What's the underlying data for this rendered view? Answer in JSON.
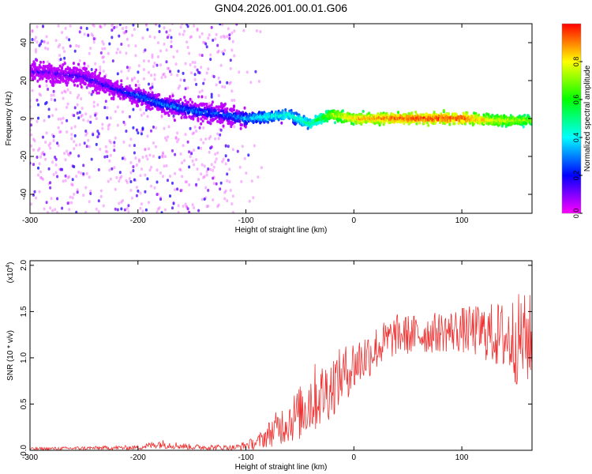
{
  "title": "GN04.2026.001.00.01.G06",
  "chart_data": [
    {
      "type": "heatmap",
      "xlabel": "Height of straight line (km)",
      "ylabel": "Frequency (Hz)",
      "xlim": [
        -300,
        165
      ],
      "ylim": [
        -50,
        50
      ],
      "xticks": [
        -300,
        -200,
        -100,
        0,
        100
      ],
      "xtick_labels": [
        "-300",
        "-200",
        "-100",
        "0",
        "100"
      ],
      "yticks": [
        -40,
        -20,
        0,
        20,
        40
      ],
      "ytick_labels": [
        "-40",
        "-20",
        "0",
        "20",
        "40"
      ],
      "colorbar": {
        "label": "Normalized spectral amplitude",
        "range": [
          0,
          1
        ],
        "ticks": [
          0,
          0.2,
          0.4,
          0.6,
          0.8
        ],
        "tick_labels": [
          "0.0",
          "0.2",
          "0.4",
          "0.6",
          "0.8"
        ],
        "colors": [
          "#ff00ff",
          "#0000ff",
          "#00ffff",
          "#00ff00",
          "#ffff00",
          "#ff0000"
        ]
      },
      "ridge": {
        "x": [
          -300,
          -250,
          -220,
          -200,
          -180,
          -150,
          -120,
          -100,
          -80,
          -60,
          -40,
          -30,
          -20,
          0,
          50,
          100,
          130,
          165
        ],
        "frequency": [
          25,
          22,
          15,
          12,
          8,
          4,
          2,
          0,
          1,
          2,
          -3,
          0,
          2,
          0,
          0,
          0,
          -1,
          -1
        ],
        "amplitude": [
          0.12,
          0.18,
          0.2,
          0.28,
          0.3,
          0.3,
          0.28,
          0.35,
          0.45,
          0.45,
          0.5,
          0.6,
          0.75,
          0.85,
          0.95,
          0.95,
          0.8,
          0.7
        ]
      },
      "grid": false
    },
    {
      "type": "line",
      "xlabel": "Height of straight line (km)",
      "ylabel": "SNR (10 * v/v)",
      "y_multiplier_label": "(x10",
      "y_multiplier_exp": "4",
      "y_multiplier_close": ")",
      "xlim": [
        -300,
        165
      ],
      "ylim": [
        0,
        20500
      ],
      "xticks": [
        -300,
        -200,
        -100,
        0,
        100
      ],
      "xtick_labels": [
        "-300",
        "-200",
        "-100",
        "0",
        "100"
      ],
      "yticks": [
        0,
        5000,
        10000,
        15000,
        20000
      ],
      "ytick_labels": [
        "0.0",
        "0.5",
        "1.0",
        "1.5",
        "2.0"
      ],
      "series": [
        {
          "color": "#ee3333",
          "envelope_x": [
            -300,
            -200,
            -180,
            -150,
            -110,
            -90,
            -70,
            -50,
            -40,
            -30,
            -20,
            -10,
            0,
            20,
            40,
            60,
            80,
            100,
            120,
            140,
            150,
            165
          ],
          "mean": [
            150,
            300,
            700,
            350,
            300,
            800,
            2500,
            4000,
            5500,
            6000,
            7000,
            8200,
            9200,
            11000,
            12500,
            12500,
            12800,
            13000,
            12800,
            12200,
            12000,
            12000
          ],
          "spread": [
            150,
            250,
            500,
            300,
            300,
            700,
            2000,
            3000,
            4000,
            3500,
            3500,
            3000,
            3000,
            2500,
            2200,
            2200,
            2200,
            2500,
            3000,
            4000,
            5000,
            5000
          ]
        }
      ],
      "grid": false
    }
  ]
}
